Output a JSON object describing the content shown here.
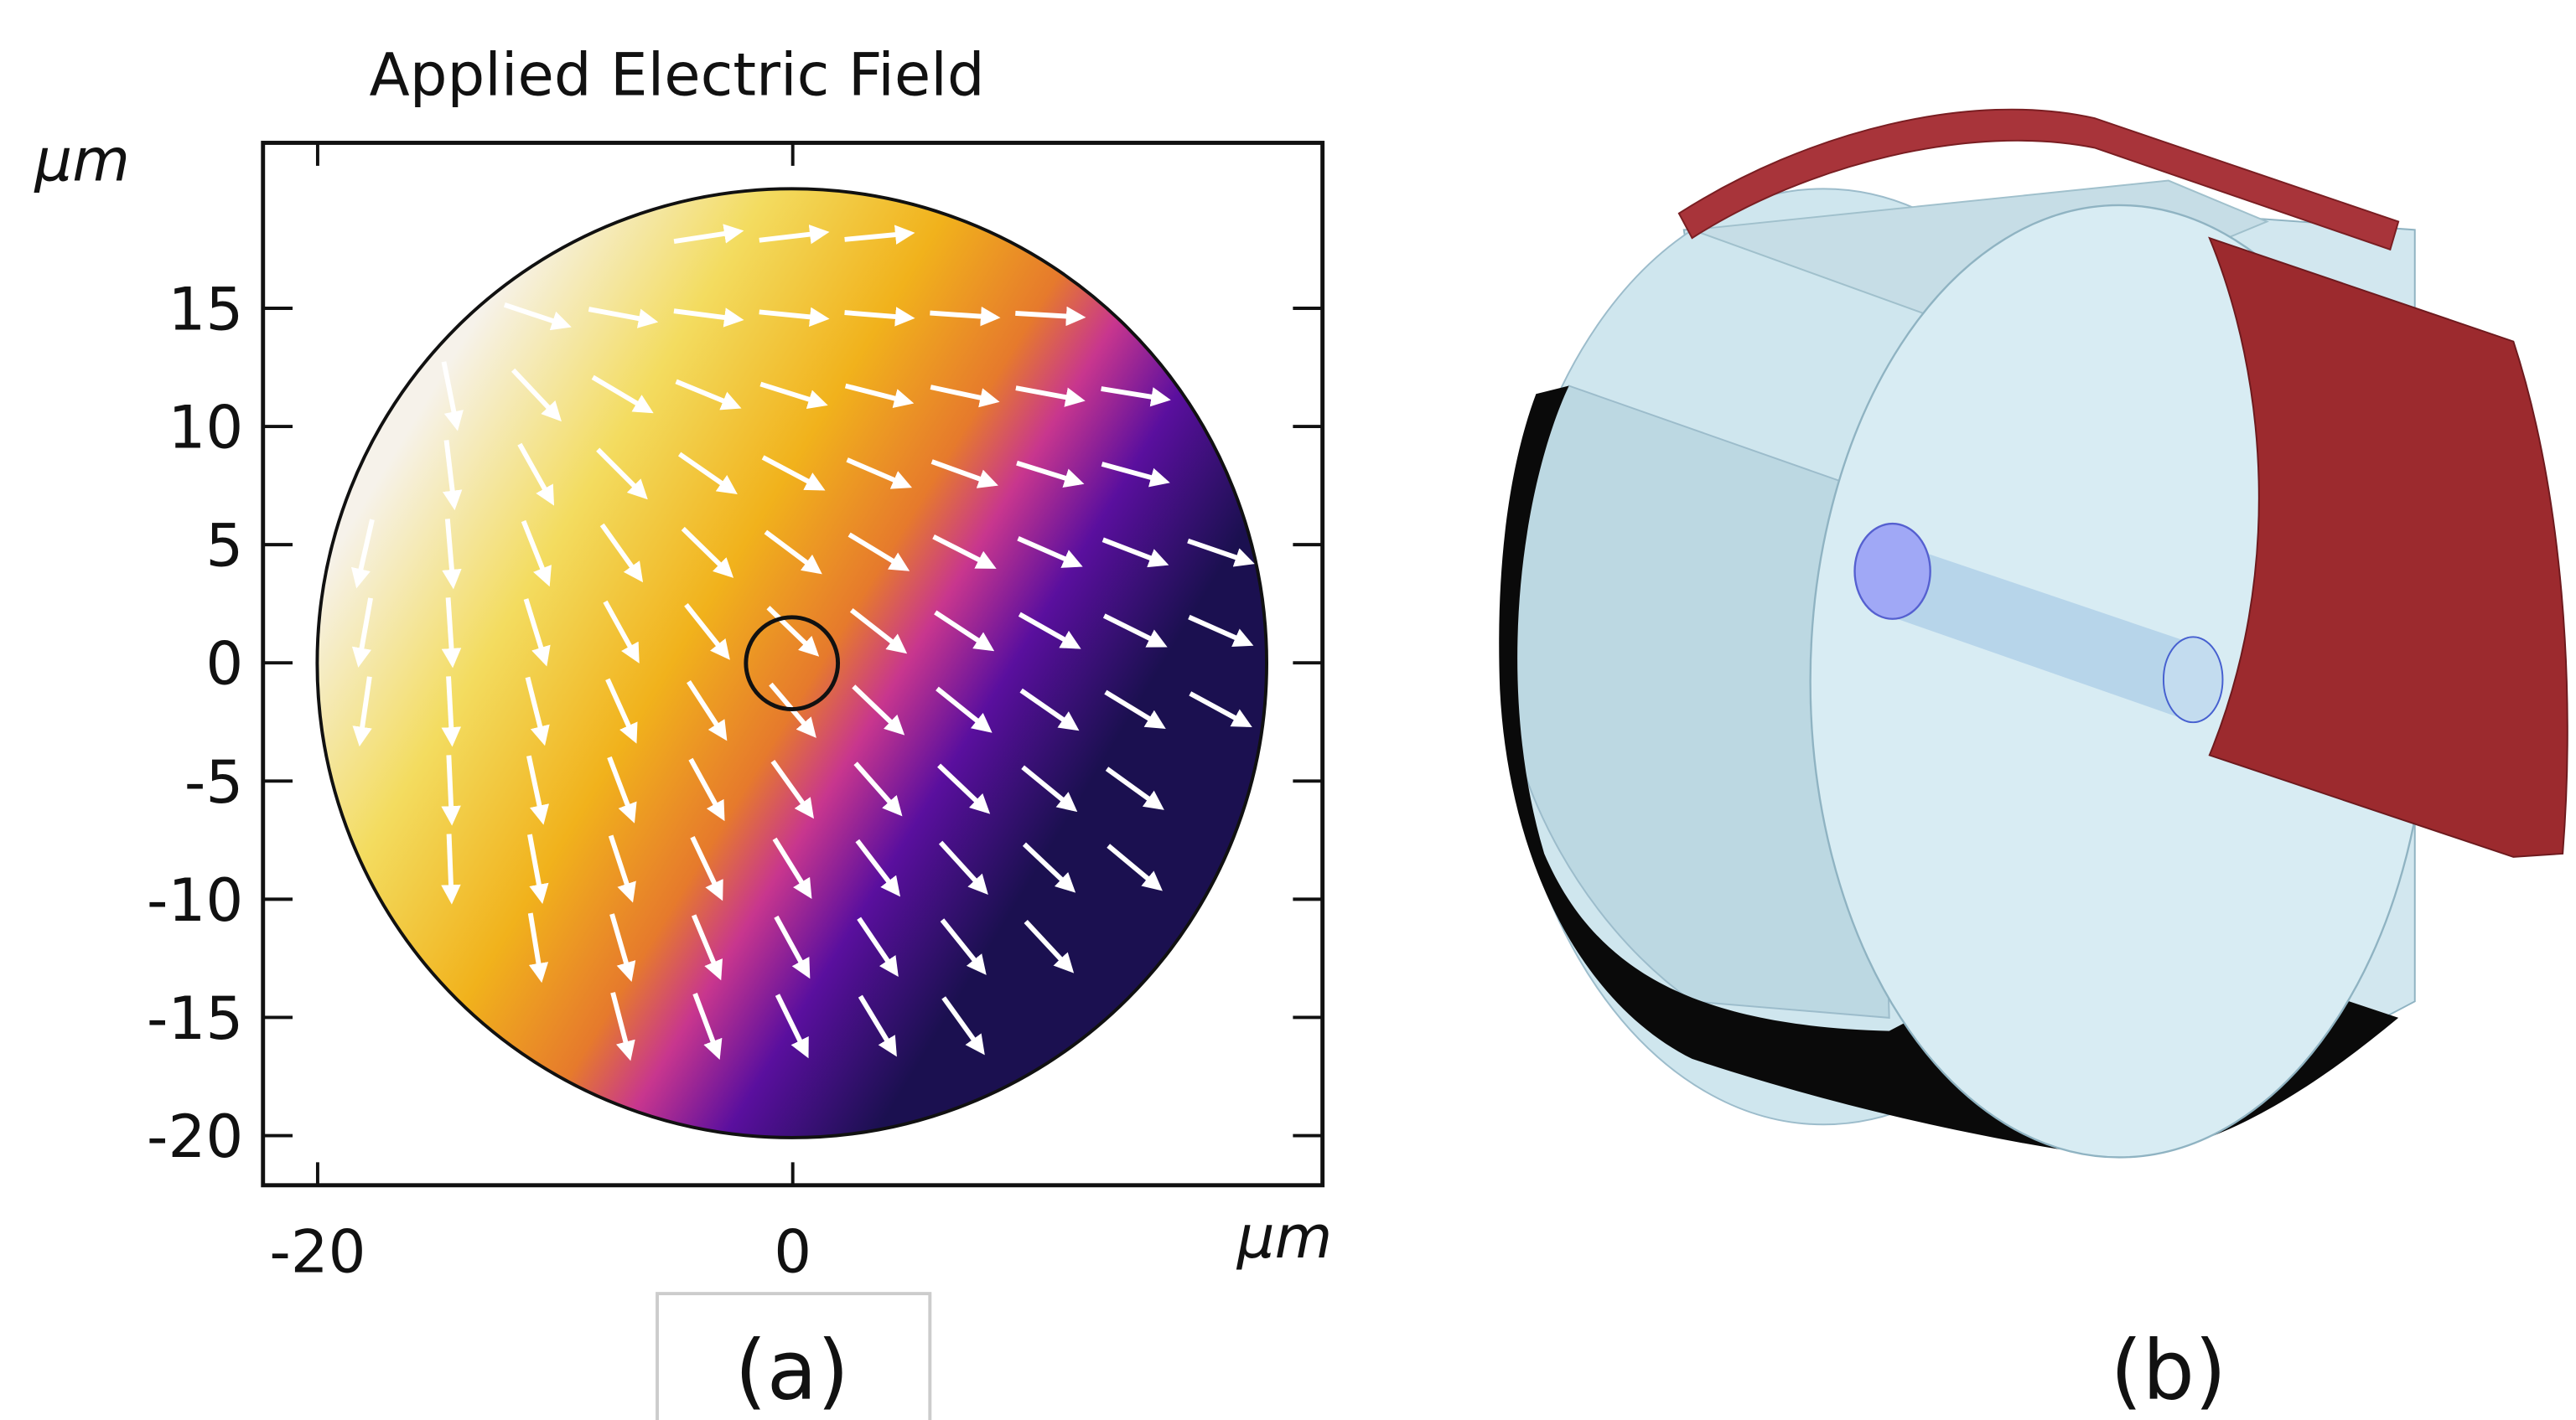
{
  "chart_data": {
    "type": "vector-field",
    "title": "Applied Electric Field",
    "x_label": "μm",
    "y_label": "μm",
    "xlim": [
      -22.3,
      22.3
    ],
    "ylim": [
      -22.1,
      22.0
    ],
    "xticks": [
      -20,
      0
    ],
    "yticks": [
      -20,
      -15,
      -10,
      -5,
      0,
      5,
      10,
      15
    ],
    "annotations": [
      "(a)",
      "(b)"
    ]
  }
}
